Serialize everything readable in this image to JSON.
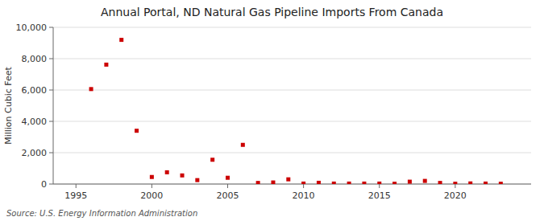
{
  "chart_data": {
    "type": "scatter",
    "title": "Annual Portal, ND Natural Gas Pipeline Imports From Canada",
    "y_label": "Million Cubic Feet",
    "source": "Source: U.S. Energy Information Administration",
    "color": "#cc0000",
    "marker": "square",
    "grid": true,
    "x": [
      1996,
      1997,
      1998,
      1999,
      2000,
      2001,
      2002,
      2003,
      2004,
      2005,
      2006,
      2007,
      2008,
      2009,
      2010,
      2011,
      2012,
      2013,
      2014,
      2015,
      2016,
      2017,
      2018,
      2019,
      2020,
      2021,
      2022,
      2023
    ],
    "values": [
      6060,
      7620,
      9200,
      3400,
      450,
      750,
      550,
      250,
      1550,
      400,
      2500,
      70,
      100,
      300,
      30,
      80,
      30,
      30,
      30,
      30,
      20,
      150,
      200,
      70,
      20,
      40,
      30,
      20
    ],
    "xlim": [
      1993.5,
      2025
    ],
    "xticks": [
      1995,
      2000,
      2005,
      2010,
      2015,
      2020
    ],
    "ylim": [
      0,
      10000
    ],
    "yticks": [
      0,
      {
        "value": 2000,
        "label": "2,000"
      },
      {
        "value": 4000,
        "label": "4,000"
      },
      {
        "value": 6000,
        "label": "6,000"
      },
      {
        "value": 8000,
        "label": "8,000"
      },
      {
        "value": 10000,
        "label": "10,000"
      }
    ]
  }
}
